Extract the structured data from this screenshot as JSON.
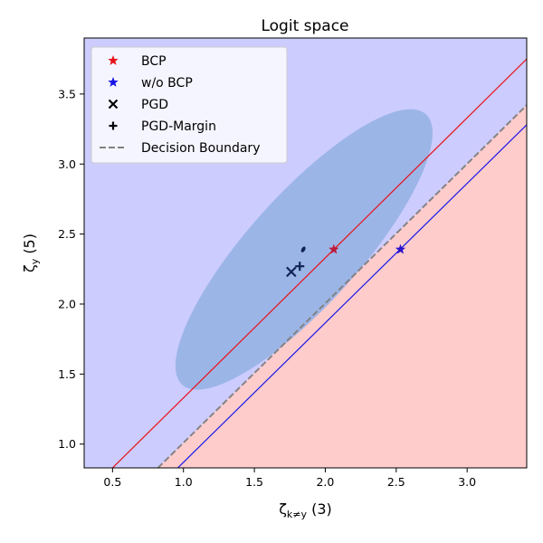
{
  "chart_data": {
    "type": "scatter",
    "title": "Logit space",
    "xlabel": "ζ_{k≠y} (3)",
    "ylabel": "ζ_y (5)",
    "xlim": [
      0.3,
      3.42
    ],
    "ylim": [
      0.83,
      3.9
    ],
    "xticks": [
      0.5,
      1.0,
      1.5,
      2.0,
      2.5,
      3.0
    ],
    "xtick_labels": [
      "0.5",
      "1.0",
      "1.5",
      "2.0",
      "2.5",
      "3.0"
    ],
    "yticks": [
      1.0,
      1.5,
      2.0,
      2.5,
      3.0,
      3.5
    ],
    "ytick_labels": [
      "1.0",
      "1.5",
      "2.0",
      "2.5",
      "3.0",
      "3.5"
    ],
    "grid": false,
    "legend_position": "upper-left",
    "regions": [
      {
        "name": "class y region",
        "color": "#ccccff"
      },
      {
        "name": "class k region",
        "color": "#ffcccc"
      }
    ],
    "ellipse": {
      "center": [
        1.85,
        2.39
      ],
      "semi_axes": [
        0.39,
        1.3
      ],
      "angle_deg": 42,
      "color": "#99b3e6"
    },
    "lines": [
      {
        "name": "BCP",
        "color": "#e8131a",
        "style": "solid",
        "x1": 0.5,
        "y1": 0.83,
        "x2": 3.42,
        "y2": 3.75
      },
      {
        "name": "w/o BCP",
        "color": "#1515e8",
        "style": "solid",
        "x1": 0.96,
        "y1": 0.83,
        "x2": 3.42,
        "y2": 3.28
      },
      {
        "name": "Decision Boundary",
        "color": "#808080",
        "style": "dashed",
        "x1": 0.82,
        "y1": 0.83,
        "x2": 3.42,
        "y2": 3.42
      }
    ],
    "points": [
      {
        "name": "BCP",
        "marker": "star",
        "color": "#bb1c3a",
        "x": 2.06,
        "y": 2.39
      },
      {
        "name": "w/o BCP",
        "marker": "star",
        "color": "#2c14cc",
        "x": 2.53,
        "y": 2.39
      },
      {
        "name": "PGD",
        "marker": "x",
        "color": "#0f2353",
        "x": 1.76,
        "y": 2.23
      },
      {
        "name": "PGD-Margin",
        "marker": "plus",
        "color": "#0f2353",
        "x": 1.82,
        "y": 2.27
      },
      {
        "name": "small mark",
        "marker": "dot",
        "color": "#0f2353",
        "x": 1.845,
        "y": 2.39
      }
    ],
    "legend": [
      {
        "label": "BCP",
        "marker": "star",
        "color": "#e8131a"
      },
      {
        "label": "w/o BCP",
        "marker": "star",
        "color": "#1515e8"
      },
      {
        "label": "PGD",
        "marker": "x",
        "color": "#000000"
      },
      {
        "label": "PGD-Margin",
        "marker": "plus",
        "color": "#000000"
      },
      {
        "label": "Decision Boundary",
        "marker": "dashed-line",
        "color": "#808080"
      }
    ]
  }
}
